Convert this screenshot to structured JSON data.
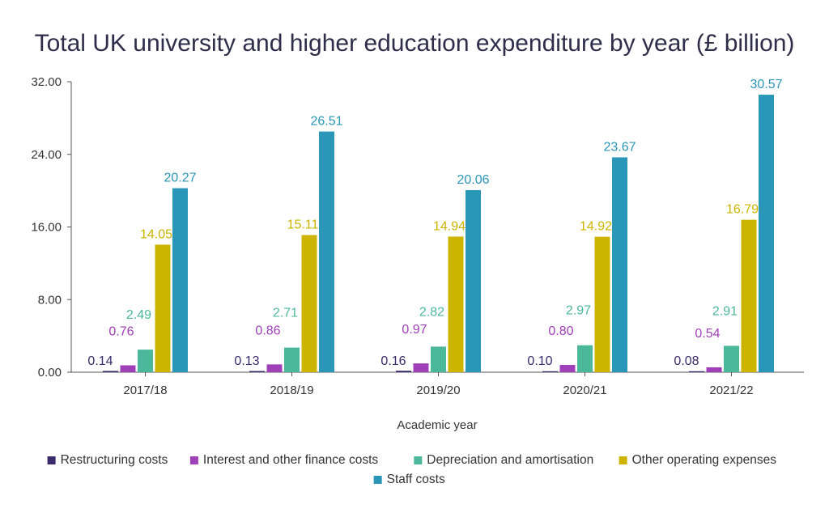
{
  "chart_data": {
    "type": "bar",
    "title": "Total UK university and higher education expenditure by year (£ billion)",
    "xlabel": "Academic year",
    "ylabel": "",
    "ylim": [
      0,
      32
    ],
    "yticks": [
      "0.00",
      "8.00",
      "16.00",
      "24.00",
      "32.00"
    ],
    "categories": [
      "2017/18",
      "2018/19",
      "2019/20",
      "2020/21",
      "2021/22"
    ],
    "series": [
      {
        "name": "Restructuring costs",
        "color": "#3b2a6b",
        "values": [
          0.14,
          0.13,
          0.16,
          0.1,
          0.08
        ],
        "labels": [
          "0.14",
          "0.13",
          "0.16",
          "0.10",
          "0.08"
        ]
      },
      {
        "name": "Interest and other finance costs",
        "color": "#a040b8",
        "values": [
          0.76,
          0.86,
          0.97,
          0.8,
          0.54
        ],
        "labels": [
          "0.76",
          "0.86",
          "0.97",
          "0.80",
          "0.54"
        ]
      },
      {
        "name": "Depreciation and amortisation",
        "color": "#4cb89a",
        "values": [
          2.49,
          2.71,
          2.82,
          2.97,
          2.91
        ],
        "labels": [
          "2.49",
          "2.71",
          "2.82",
          "2.97",
          "2.91"
        ]
      },
      {
        "name": "Other operating expenses",
        "color": "#ccb400",
        "values": [
          14.05,
          15.11,
          14.94,
          14.92,
          16.79
        ],
        "labels": [
          "14.05",
          "15.11",
          "14.94",
          "14.92",
          "16.79"
        ]
      },
      {
        "name": "Staff costs",
        "color": "#2a96b8",
        "values": [
          20.27,
          26.51,
          20.06,
          23.67,
          30.57
        ],
        "labels": [
          "20.27",
          "26.51",
          "20.06",
          "23.67",
          "30.57"
        ]
      }
    ],
    "grid": false,
    "legend": "bottom"
  }
}
